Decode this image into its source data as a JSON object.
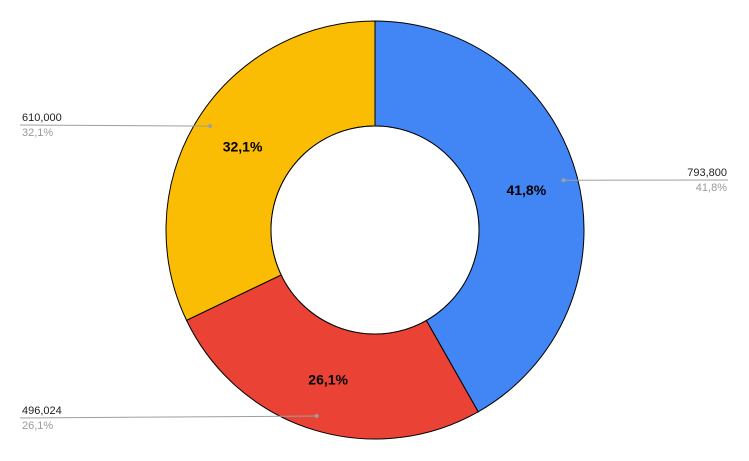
{
  "chart_data": {
    "type": "pie",
    "donut": true,
    "categories": [
      "",
      "",
      ""
    ],
    "values": [
      793800,
      496024,
      610000
    ],
    "value_labels": [
      "793,800",
      "496,024",
      "610,000"
    ],
    "percent_labels": [
      "41,8%",
      "26,1%",
      "32,1%"
    ],
    "colors": [
      "#4285f4",
      "#ea4335",
      "#fbbc04"
    ],
    "legend": "none",
    "title": ""
  }
}
